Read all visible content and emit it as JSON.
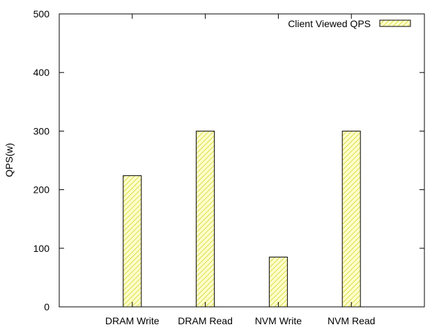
{
  "chart_data": {
    "type": "bar",
    "title": "",
    "xlabel": "",
    "ylabel": "QPS(w)",
    "categories": [
      "DRAM Write",
      "DRAM Read",
      "NVM Write",
      "NVM Read"
    ],
    "series": [
      {
        "name": "Client Viewed QPS",
        "values": [
          224,
          300,
          85,
          300
        ]
      }
    ],
    "ylim": [
      0,
      500
    ],
    "yticks": [
      "0",
      "100",
      "200",
      "300",
      "400",
      "500"
    ],
    "grid": false,
    "legend_position": "top-right",
    "bar_fill": "#ffffcc",
    "bar_hatch": "#c8c800",
    "frame_color": "#000000"
  }
}
